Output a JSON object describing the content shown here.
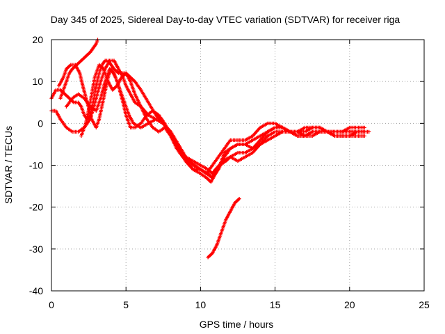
{
  "chart_data": {
    "type": "scatter",
    "title": "Day 345 of 2025, Sidereal Day-to-day VTEC variation (SDTVAR) for receiver riga",
    "xlabel": "GPS time / hours",
    "ylabel": "SDTVAR / TECUs",
    "xlim": [
      0,
      25
    ],
    "ylim": [
      -40,
      20
    ],
    "xticks": [
      0,
      5,
      10,
      15,
      20,
      25
    ],
    "yticks": [
      -40,
      -30,
      -20,
      -10,
      0,
      10,
      20
    ],
    "grid": true,
    "marker": "plus",
    "color": "#ff0000",
    "series": [
      {
        "name": "track-1",
        "x": [
          0.0,
          0.3,
          0.6,
          0.9,
          1.2,
          1.5,
          1.8,
          2.0,
          2.2,
          2.4,
          2.6,
          2.8,
          3.0,
          3.2,
          3.4,
          3.6,
          3.8,
          4.0,
          4.2,
          4.5,
          4.8,
          5.0,
          5.3,
          5.6,
          6.0,
          6.5,
          7.0,
          7.5,
          8.0,
          8.5,
          9.0,
          9.5,
          10.0,
          10.5,
          10.8,
          11.0,
          11.3,
          11.6,
          12.0,
          12.5,
          13.0,
          13.5,
          14.0,
          14.5,
          15.0,
          15.5,
          16.0,
          16.5,
          17.0,
          17.5,
          18.0,
          18.5,
          19.0,
          19.5,
          20.0,
          20.5,
          21.0
        ],
        "y": [
          6,
          8,
          8,
          7,
          6,
          5,
          5,
          4,
          2,
          1,
          2,
          5,
          9,
          12,
          14,
          15,
          15,
          14,
          13,
          12,
          12,
          12,
          11,
          10,
          8,
          5,
          2,
          0,
          -2,
          -5,
          -8,
          -10,
          -11,
          -12,
          -13,
          -12,
          -10,
          -7,
          -6,
          -5,
          -5,
          -4,
          -3,
          -2,
          -1,
          -1,
          -2,
          -2,
          -1,
          -1,
          -1,
          -2,
          -2,
          -2,
          -2,
          -2,
          -2
        ]
      },
      {
        "name": "track-2",
        "x": [
          0.0,
          0.3,
          0.6,
          1.0,
          1.4,
          1.8,
          2.2,
          2.6,
          3.0,
          3.3,
          3.6,
          3.9,
          4.2,
          4.5,
          4.8,
          5.0,
          5.3,
          5.6,
          6.0,
          6.5,
          7.0,
          7.5,
          8.0,
          8.5,
          9.0,
          9.5,
          10.0,
          10.5,
          10.8,
          11.0,
          11.5,
          12.0,
          12.5,
          13.0,
          13.5,
          14.0,
          14.5,
          15.0,
          15.5,
          16.0,
          16.5,
          17.0,
          17.5,
          18.0,
          18.5,
          19.0,
          19.5,
          20.0,
          20.5,
          21.0
        ],
        "y": [
          3,
          3,
          1,
          -1,
          -2,
          -2,
          -1,
          1,
          6,
          10,
          13,
          15,
          15,
          13,
          11,
          9,
          7,
          5,
          4,
          2,
          1,
          0,
          -2,
          -5,
          -8,
          -9,
          -10,
          -11,
          -12,
          -11,
          -9,
          -8,
          -7,
          -7,
          -6,
          -5,
          -3,
          -2,
          -2,
          -2,
          -3,
          -3,
          -2,
          -2,
          -2,
          -3,
          -3,
          -3,
          -3,
          -3
        ]
      },
      {
        "name": "track-3",
        "x": [
          0.5,
          0.8,
          1.0,
          1.3,
          1.6,
          1.9,
          2.1,
          2.4,
          2.7,
          3.0,
          3.2,
          3.5,
          3.8,
          4.0,
          4.3,
          4.6,
          4.9,
          5.2,
          5.5,
          6.0,
          6.5,
          7.0,
          7.5,
          8.0,
          8.5,
          9.0,
          9.5,
          10.0,
          10.4,
          10.7,
          11.0,
          11.3,
          11.7,
          12.0,
          12.5,
          13.0,
          13.5,
          14.0,
          14.5,
          15.0,
          15.5,
          16.0,
          16.5,
          17.0,
          17.5,
          18.0,
          18.5,
          19.0,
          19.5,
          20.0,
          20.5,
          21.0,
          21.3
        ],
        "y": [
          9,
          11,
          13,
          14,
          14,
          12,
          9,
          5,
          1,
          -1,
          1,
          6,
          11,
          13,
          11,
          8,
          5,
          2,
          0,
          -1,
          0,
          1,
          0,
          -3,
          -6,
          -9,
          -11,
          -12,
          -13,
          -14,
          -12,
          -10,
          -9,
          -8,
          -9,
          -8,
          -7,
          -5,
          -4,
          -3,
          -2,
          -2,
          -3,
          -3,
          -2,
          -2,
          -2,
          -2,
          -2,
          -2,
          -2,
          -2,
          -2
        ]
      },
      {
        "name": "track-4",
        "x": [
          1.0,
          1.4,
          1.8,
          2.2,
          2.6,
          3.0,
          3.3,
          3.6,
          3.9,
          4.2,
          4.5,
          4.8,
          5.0,
          5.3,
          5.6,
          6.0,
          6.4,
          6.8,
          7.2,
          7.6,
          8.0,
          8.5,
          9.0,
          9.5,
          10.0,
          10.4,
          10.8,
          11.2,
          11.6,
          12.0,
          12.5,
          13.0,
          13.5,
          14.0,
          14.5,
          15.0,
          15.5,
          16.0,
          16.5,
          17.0,
          17.5,
          18.0,
          18.5,
          19.0,
          19.5,
          20.0,
          20.5,
          21.0
        ],
        "y": [
          4,
          6,
          7,
          6,
          4,
          3,
          6,
          10,
          13,
          12,
          9,
          5,
          2,
          -1,
          -1,
          0,
          2,
          3,
          2,
          0,
          -3,
          -6,
          -9,
          -11,
          -11,
          -12,
          -13,
          -11,
          -8,
          -6,
          -5,
          -5,
          -6,
          -4,
          -2,
          -1,
          -1,
          -2,
          -2,
          -3,
          -3,
          -2,
          -2,
          -3,
          -3,
          -3,
          -2,
          -2
        ]
      },
      {
        "name": "track-5",
        "x": [
          2.0,
          2.3,
          2.6,
          2.9,
          3.2,
          3.5,
          3.8,
          4.1,
          4.4,
          4.7,
          5.0,
          5.3,
          5.6,
          6.0,
          6.4,
          6.8,
          7.2,
          7.6,
          8.0,
          8.4,
          8.8,
          9.2,
          9.6,
          10.0,
          10.4,
          10.8,
          11.2,
          11.6,
          12.0,
          12.5,
          13.0,
          13.5,
          14.0,
          14.5,
          15.0,
          15.5,
          16.0,
          16.5,
          17.0,
          17.5,
          18.0,
          18.5,
          19.0,
          19.5,
          20.0,
          20.5,
          21.0
        ],
        "y": [
          -3,
          0,
          5,
          11,
          14,
          13,
          10,
          8,
          9,
          11,
          12,
          10,
          7,
          4,
          1,
          -1,
          -2,
          -1,
          -3,
          -6,
          -8,
          -9,
          -10,
          -11,
          -12,
          -10,
          -8,
          -6,
          -4,
          -4,
          -4,
          -3,
          -1,
          0,
          0,
          -1,
          -2,
          -2,
          -2,
          -1,
          -1,
          -2,
          -2,
          -2,
          -1,
          -1,
          -1
        ]
      },
      {
        "name": "track-6",
        "x": [
          0.6,
          0.8,
          1.0,
          1.2,
          1.4,
          1.7,
          2.0,
          2.3,
          2.6,
          2.8,
          3.0,
          3.1
        ],
        "y": [
          6,
          8,
          10,
          12,
          13,
          14,
          15,
          16,
          17,
          18,
          19,
          20
        ]
      },
      {
        "name": "track-7",
        "x": [
          10.5,
          10.8,
          11.1,
          11.4,
          11.7,
          12.0,
          12.3,
          12.6
        ],
        "y": [
          -32,
          -31,
          -29,
          -26,
          -23,
          -21,
          -19,
          -18
        ]
      }
    ]
  }
}
